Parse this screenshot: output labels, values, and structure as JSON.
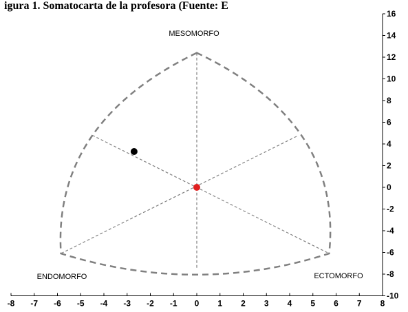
{
  "header_fragment": "igura 1. Somatocarta de la profesora (Fuente: E",
  "chart_data": {
    "type": "scatter",
    "subtype": "somatochart",
    "title": "",
    "xlabel": "",
    "ylabel": "",
    "xlim": [
      -8,
      8
    ],
    "ylim": [
      -10,
      16
    ],
    "x_ticks": [
      -8,
      -7,
      -6,
      -5,
      -4,
      -3,
      -2,
      -1,
      0,
      1,
      2,
      3,
      4,
      5,
      6,
      7,
      8
    ],
    "y_ticks": [
      -10,
      -8,
      -6,
      -4,
      -2,
      0,
      2,
      4,
      6,
      8,
      10,
      12,
      14,
      16
    ],
    "y_axis_position": "right",
    "grid": false,
    "region_labels": {
      "top": "MESOMORFO",
      "bottom_left": "ENDOMORFO",
      "bottom_right": "ECTOMORFO"
    },
    "points": [
      {
        "x": -2.7,
        "y": 3.3,
        "color": "#000000"
      },
      {
        "x": 0.0,
        "y": 0.0,
        "color": "#e02020"
      }
    ],
    "outline_color": "#808080",
    "guide_color": "#808080"
  }
}
